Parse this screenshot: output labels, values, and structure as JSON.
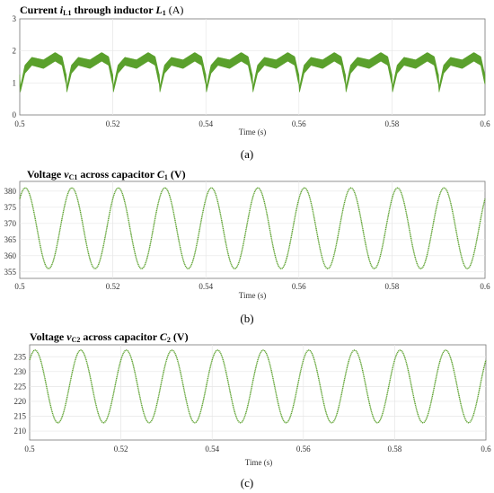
{
  "chart_data": [
    {
      "type": "line",
      "title_main": "Current ",
      "title_var": "i",
      "title_var_sub": "L1",
      "title_mid": " through inductor ",
      "title_comp": "L",
      "title_comp_sub": "1",
      "title_unit": " (A)",
      "xlabel": "Time (s)",
      "caption": "(a)",
      "xlim": [
        0.5,
        0.6
      ],
      "ylim": [
        0,
        3
      ],
      "xticks": [
        "0.5",
        "0.52",
        "0.54",
        "0.56",
        "0.58",
        "0.6"
      ],
      "yticks": [
        "0",
        "1",
        "2",
        "3"
      ],
      "color": "#5aa02c",
      "series": [
        {
          "x": [
            0.5,
            0.501,
            0.5025,
            0.505,
            0.5075,
            0.509,
            0.5098,
            0.5104,
            0.511,
            0.5125,
            0.515,
            0.5175,
            0.519,
            0.5198,
            0.52
          ],
          "upper": [
            0.85,
            1.55,
            1.8,
            1.72,
            1.95,
            1.82,
            1.3,
            1.05,
            1.55,
            1.8,
            1.72,
            1.95,
            1.82,
            1.3,
            1.05
          ],
          "lower": [
            0.7,
            1.3,
            1.55,
            1.45,
            1.68,
            1.55,
            1.0,
            0.75,
            1.3,
            1.55,
            1.45,
            1.68,
            1.55,
            1.0,
            0.75
          ]
        }
      ],
      "period": 0.01,
      "phase": 0.0035,
      "shape": "inductor"
    },
    {
      "type": "line",
      "title_main": "Voltage ",
      "title_var": "v",
      "title_var_sub": "C1",
      "title_mid": " across capacitor ",
      "title_comp": "C",
      "title_comp_sub": "1",
      "title_unit": " (V)",
      "xlabel": "Time (s)",
      "caption": "(b)",
      "xlim": [
        0.5,
        0.6
      ],
      "ylim": [
        353,
        383
      ],
      "xticks": [
        "0.5",
        "0.52",
        "0.54",
        "0.56",
        "0.58",
        "0.6"
      ],
      "yticks": [
        "355",
        "360",
        "365",
        "370",
        "375",
        "380"
      ],
      "color": "#5aa02c",
      "mean": 368.5,
      "amplitude": 12.5,
      "period": 0.01,
      "peak_at": 0.5012,
      "shape": "sine"
    },
    {
      "type": "line",
      "title_main": "Voltage ",
      "title_var": "v",
      "title_var_sub": "C2",
      "title_mid": " across capacitor ",
      "title_comp": "C",
      "title_comp_sub": "2",
      "title_unit": " (V)",
      "xlabel": "Time (s)",
      "caption": "(c)",
      "xlim": [
        0.5,
        0.6
      ],
      "ylim": [
        207,
        239
      ],
      "xticks": [
        "0.5",
        "0.52",
        "0.54",
        "0.56",
        "0.58",
        "0.6"
      ],
      "yticks": [
        "210",
        "215",
        "220",
        "225",
        "230",
        "235"
      ],
      "color": "#5aa02c",
      "mean": 225,
      "amplitude": 12.2,
      "period": 0.01,
      "peak_at": 0.5012,
      "shape": "sine"
    }
  ]
}
